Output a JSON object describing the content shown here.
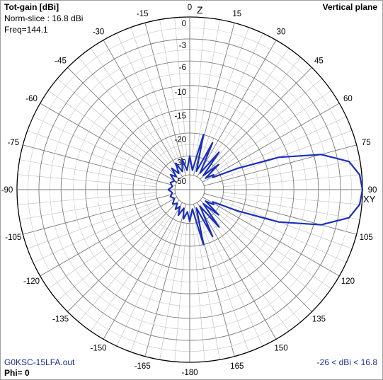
{
  "header": {
    "title": "Tot-gain [dBi]",
    "norm_slice": "Norm-slice : 16.8 dBi",
    "freq": "Freq=144.1",
    "plane": "Vertical plane"
  },
  "footer": {
    "file": "G0KSC-15LFA.out",
    "phi": "Phi= 0",
    "range": "-26 < dBi < 16.8"
  },
  "axis_marks": {
    "zenith": "Z",
    "horizon": "XY"
  },
  "chart_data": {
    "type": "polar",
    "angle_labels": [
      "0",
      "15",
      "30",
      "45",
      "60",
      "75",
      "90",
      "105",
      "120",
      "135",
      "150",
      "165",
      "-180",
      "-165",
      "-150",
      "-135",
      "-120",
      "-105",
      "-90",
      "-75",
      "-60",
      "-45",
      "-30",
      "-15"
    ],
    "radial_labels": [
      "0",
      "-3",
      "-6",
      "-10",
      "-15",
      "-20",
      "-30",
      "-50"
    ],
    "radial_range_dB": [
      -50,
      0
    ],
    "grid": true,
    "series": [
      {
        "color": "#1a2fbf",
        "points_deg_db": [
          [
            0,
            -30
          ],
          [
            8,
            -45
          ],
          [
            14,
            -20
          ],
          [
            20,
            -45
          ],
          [
            26,
            -22
          ],
          [
            32,
            -45
          ],
          [
            38,
            -24
          ],
          [
            44,
            -45
          ],
          [
            49,
            -28
          ],
          [
            54,
            -45
          ],
          [
            58,
            -36
          ],
          [
            62,
            -38
          ],
          [
            66,
            -22
          ],
          [
            70,
            -12
          ],
          [
            75,
            -5
          ],
          [
            80,
            -1.5
          ],
          [
            85,
            -0.3
          ],
          [
            90,
            0
          ],
          [
            95,
            -0.3
          ],
          [
            100,
            -1.5
          ],
          [
            105,
            -5
          ],
          [
            110,
            -12
          ],
          [
            114,
            -22
          ],
          [
            118,
            -38
          ],
          [
            122,
            -36
          ],
          [
            126,
            -45
          ],
          [
            131,
            -28
          ],
          [
            136,
            -45
          ],
          [
            142,
            -24
          ],
          [
            148,
            -45
          ],
          [
            154,
            -22
          ],
          [
            160,
            -45
          ],
          [
            166,
            -20
          ],
          [
            172,
            -45
          ],
          [
            180,
            -32
          ],
          [
            186,
            -42
          ],
          [
            192,
            -34
          ],
          [
            198,
            -45
          ],
          [
            204,
            -36
          ],
          [
            210,
            -45
          ],
          [
            216,
            -40
          ],
          [
            222,
            -46
          ],
          [
            230,
            -42
          ],
          [
            240,
            -47
          ],
          [
            250,
            -44
          ],
          [
            260,
            -47
          ],
          [
            270,
            -43
          ],
          [
            280,
            -47
          ],
          [
            290,
            -44
          ],
          [
            300,
            -47
          ],
          [
            308,
            -40
          ],
          [
            314,
            -46
          ],
          [
            320,
            -36
          ],
          [
            326,
            -45
          ],
          [
            332,
            -34
          ],
          [
            338,
            -45
          ],
          [
            346,
            -32
          ],
          [
            352,
            -45
          ],
          [
            360,
            -30
          ]
        ]
      }
    ]
  }
}
